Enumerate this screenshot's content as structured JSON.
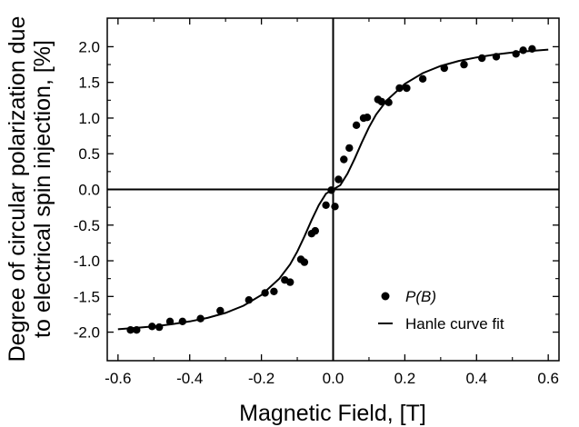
{
  "chart_data": {
    "type": "scatter",
    "xlabel": "Magnetic Field, [T]",
    "ylabel_lines": [
      "Degree of circular polarization due",
      "to electrical spin injection, [%]"
    ],
    "xlim": [
      -0.63,
      0.63
    ],
    "ylim": [
      -2.4,
      2.4
    ],
    "x_ticks": [
      -0.6,
      -0.4,
      -0.2,
      0.0,
      0.2,
      0.4,
      0.6
    ],
    "x_tick_labels": [
      "-0.6",
      "-0.4",
      "-0.2",
      "0.0",
      "0.2",
      "0.4",
      "0.6"
    ],
    "y_ticks": [
      -2.0,
      -1.5,
      -1.0,
      -0.5,
      0.0,
      0.5,
      1.0,
      1.5,
      2.0
    ],
    "y_tick_labels": [
      "-2.0",
      "-1.5",
      "-1.0",
      "-0.5",
      "0.0",
      "0.5",
      "1.0",
      "1.5",
      "2.0"
    ],
    "zero_lines": true,
    "legend": {
      "placement": "bottom-right",
      "entries": [
        "P(B)",
        "Hanle curve fit"
      ]
    },
    "series": [
      {
        "name": "P(B)",
        "marker": "circle",
        "x": [
          -0.565,
          -0.548,
          -0.505,
          -0.485,
          -0.455,
          -0.42,
          -0.37,
          -0.315,
          -0.235,
          -0.19,
          -0.165,
          -0.135,
          -0.12,
          -0.09,
          -0.08,
          -0.06,
          -0.05,
          -0.02,
          -0.005,
          0.005,
          0.015,
          0.03,
          0.045,
          0.065,
          0.085,
          0.095,
          0.125,
          0.135,
          0.155,
          0.185,
          0.205,
          0.25,
          0.31,
          0.365,
          0.415,
          0.455,
          0.51,
          0.53,
          0.555
        ],
        "y": [
          -1.97,
          -1.97,
          -1.92,
          -1.93,
          -1.85,
          -1.85,
          -1.81,
          -1.7,
          -1.55,
          -1.45,
          -1.43,
          -1.27,
          -1.3,
          -0.98,
          -1.02,
          -0.62,
          -0.58,
          -0.22,
          -0.01,
          -0.24,
          0.14,
          0.42,
          0.58,
          0.9,
          1.0,
          1.01,
          1.26,
          1.23,
          1.22,
          1.42,
          1.42,
          1.55,
          1.7,
          1.75,
          1.84,
          1.86,
          1.9,
          1.95,
          1.97
        ]
      },
      {
        "name": "Hanle curve fit",
        "line": "solid",
        "x": [
          -0.6,
          -0.55,
          -0.5,
          -0.45,
          -0.4,
          -0.35,
          -0.3,
          -0.25,
          -0.2,
          -0.15,
          -0.12,
          -0.1,
          -0.08,
          -0.06,
          -0.04,
          -0.02,
          0.0,
          0.02,
          0.04,
          0.06,
          0.08,
          0.1,
          0.12,
          0.15,
          0.2,
          0.25,
          0.3,
          0.35,
          0.4,
          0.45,
          0.5,
          0.55,
          0.6
        ],
        "y": [
          -1.96,
          -1.94,
          -1.92,
          -1.89,
          -1.85,
          -1.8,
          -1.73,
          -1.63,
          -1.48,
          -1.25,
          -1.05,
          -0.87,
          -0.66,
          -0.43,
          -0.22,
          -0.06,
          0.0,
          0.06,
          0.22,
          0.43,
          0.66,
          0.87,
          1.05,
          1.25,
          1.48,
          1.63,
          1.73,
          1.8,
          1.85,
          1.89,
          1.92,
          1.94,
          1.96
        ]
      }
    ]
  }
}
